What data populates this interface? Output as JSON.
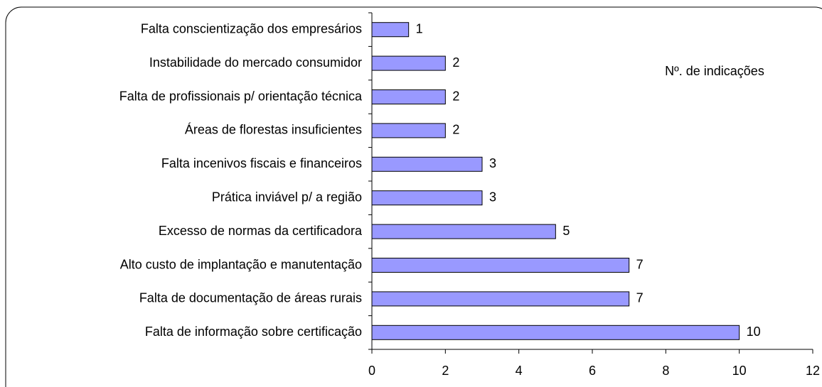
{
  "chart_data": {
    "type": "barh",
    "annotation": "Nº. de indicações",
    "categories": [
      "Falta conscientização dos empresários",
      "Instabilidade do mercado consumidor",
      "Falta de profissionais p/ orientação técnica",
      "Áreas de florestas insuficientes",
      "Falta incenivos fiscais e financeiros",
      "Prática inviável p/ a região",
      "Excesso de normas da certificadora",
      "Alto custo de implantação e manutentação",
      "Falta de documentação de áreas rurais",
      "Falta de informação sobre certificação"
    ],
    "values": [
      1,
      2,
      2,
      2,
      3,
      3,
      5,
      7,
      7,
      10
    ],
    "color": "#9999ff",
    "xlim": [
      0,
      12
    ],
    "xticks": [
      0,
      2,
      4,
      6,
      8,
      10,
      12
    ]
  }
}
